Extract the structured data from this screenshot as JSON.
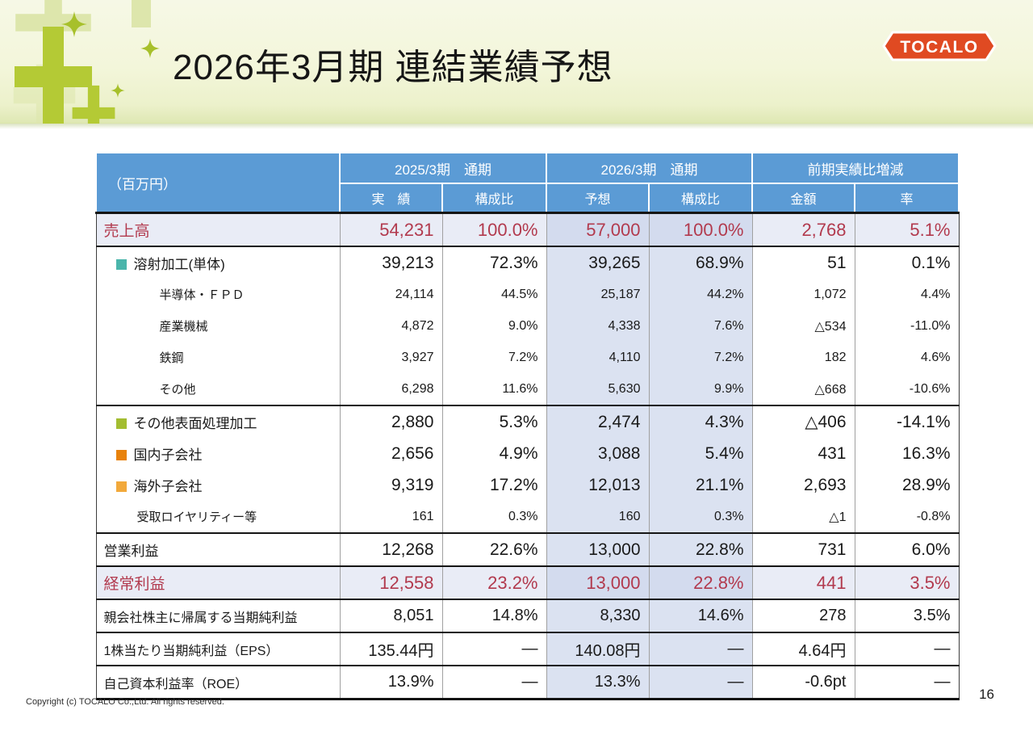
{
  "slide": {
    "title": "2026年3月期 連結業績予想",
    "logo_text": "TOCALO",
    "page_number": "16",
    "copyright": "Copyright (c) TOCALO Co.,Ltd. All rights reserved."
  },
  "colors": {
    "header_blue": "#5b9bd5",
    "forecast_col_tint": "#dbe2f1",
    "highlight_row_bg": "#e9ecf6",
    "highlight_text_red": "#b23a4e",
    "logo_orange": "#e04a22",
    "banner_green": "#b4ca35"
  },
  "table": {
    "unit_label": "（百万円）",
    "col_groups": [
      {
        "label": "2025/3期　通期",
        "sub": [
          "実　績",
          "構成比"
        ]
      },
      {
        "label": "2026/3期　通期",
        "sub": [
          "予想",
          "構成比"
        ]
      },
      {
        "label": "前期実績比増減",
        "sub": [
          "金額",
          "率"
        ]
      }
    ],
    "rows": [
      {
        "label": "売上高",
        "style": "highlight",
        "indent": "ind0",
        "bullet": null,
        "border_bottom": true,
        "values": [
          "54,231",
          "100.0%",
          "57,000",
          "100.0%",
          "2,768",
          "5.1%"
        ]
      },
      {
        "label": "溶射加工(単体)",
        "style": "group",
        "indent": "ind0b",
        "bullet": "#4ab5ab",
        "border_bottom": false,
        "values": [
          "39,213",
          "72.3%",
          "39,265",
          "68.9%",
          "51",
          "0.1%"
        ]
      },
      {
        "label": "半導体・ＦＰＤ",
        "style": "sub",
        "indent": "ind2",
        "bullet": null,
        "border_bottom": false,
        "values": [
          "24,114",
          "44.5%",
          "25,187",
          "44.2%",
          "1,072",
          "4.4%"
        ]
      },
      {
        "label": "産業機械",
        "style": "sub",
        "indent": "ind2",
        "bullet": null,
        "border_bottom": false,
        "values": [
          "4,872",
          "9.0%",
          "4,338",
          "7.6%",
          "△534",
          "-11.0%"
        ]
      },
      {
        "label": "鉄鋼",
        "style": "sub",
        "indent": "ind2",
        "bullet": null,
        "border_bottom": false,
        "values": [
          "3,927",
          "7.2%",
          "4,110",
          "7.2%",
          "182",
          "4.6%"
        ]
      },
      {
        "label": "その他",
        "style": "sub",
        "indent": "ind2",
        "bullet": null,
        "border_bottom": true,
        "values": [
          "6,298",
          "11.6%",
          "5,630",
          "9.9%",
          "△668",
          "-10.6%"
        ]
      },
      {
        "label": "その他表面処理加工",
        "style": "group",
        "indent": "ind0b",
        "bullet": "#a3bd31",
        "border_bottom": false,
        "values": [
          "2,880",
          "5.3%",
          "2,474",
          "4.3%",
          "△406",
          "-14.1%"
        ]
      },
      {
        "label": "国内子会社",
        "style": "group",
        "indent": "ind0b",
        "bullet": "#e8820c",
        "border_bottom": false,
        "values": [
          "2,656",
          "4.9%",
          "3,088",
          "5.4%",
          "431",
          "16.3%"
        ]
      },
      {
        "label": "海外子会社",
        "style": "group",
        "indent": "ind0b",
        "bullet": "#f2a93b",
        "border_bottom": false,
        "values": [
          "9,319",
          "17.2%",
          "12,013",
          "21.1%",
          "2,693",
          "28.9%"
        ]
      },
      {
        "label": "受取ロイヤリティー等",
        "style": "sub",
        "indent": "ind1",
        "bullet": null,
        "border_bottom": true,
        "values": [
          "161",
          "0.3%",
          "160",
          "0.3%",
          "△1",
          "-0.8%"
        ]
      },
      {
        "label": "営業利益",
        "style": "normal",
        "indent": "ind0",
        "bullet": null,
        "border_bottom": true,
        "values": [
          "12,268",
          "22.6%",
          "13,000",
          "22.8%",
          "731",
          "6.0%"
        ]
      },
      {
        "label": "経常利益",
        "style": "highlight",
        "indent": "ind0",
        "bullet": null,
        "border_bottom": true,
        "values": [
          "12,558",
          "23.2%",
          "13,000",
          "22.8%",
          "441",
          "3.5%"
        ]
      },
      {
        "label": "親会社株主に帰属する当期純利益",
        "style": "metric",
        "indent": "ind0",
        "bullet": null,
        "border_bottom": true,
        "values": [
          "8,051",
          "14.8%",
          "8,330",
          "14.6%",
          "278",
          "3.5%"
        ]
      },
      {
        "label": "1株当たり当期純利益（EPS）",
        "style": "metric",
        "indent": "ind0",
        "bullet": null,
        "border_bottom": true,
        "values": [
          "135.44円",
          "—",
          "140.08円",
          "—",
          "4.64円",
          "—"
        ]
      },
      {
        "label": "自己資本利益率（ROE）",
        "style": "metric",
        "indent": "ind0",
        "bullet": null,
        "border_bottom": true,
        "values": [
          "13.9%",
          "—",
          "13.3%",
          "—",
          "-0.6pt",
          "—"
        ]
      }
    ]
  }
}
